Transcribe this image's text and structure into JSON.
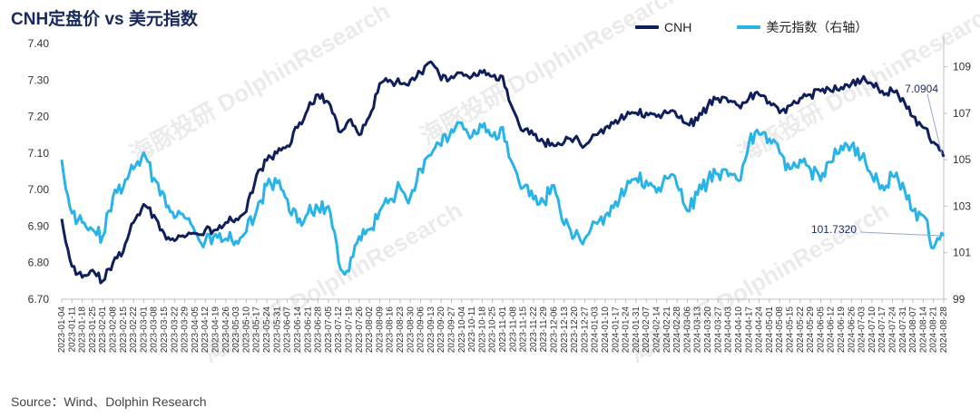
{
  "title": "CNH定盘价 vs 美元指数",
  "source": "Source：Wind、Dolphin Research",
  "watermark": "海豚投研 DolphinResearch",
  "colors": {
    "cnh": "#0f1f5c",
    "usd": "#29b3e6",
    "leader": "#9aa7c4"
  },
  "chart_data": {
    "type": "line",
    "xlabel": "",
    "ylabel": "",
    "x_ticks": [
      "2023-01-04",
      "2023-01-11",
      "2023-01-18",
      "2023-01-25",
      "2023-02-01",
      "2023-02-08",
      "2023-02-15",
      "2023-02-22",
      "2023-03-01",
      "2023-03-08",
      "2023-03-15",
      "2023-03-22",
      "2023-03-29",
      "2023-04-05",
      "2023-04-12",
      "2023-04-19",
      "2023-04-26",
      "2023-05-03",
      "2023-05-10",
      "2023-05-17",
      "2023-05-24",
      "2023-05-31",
      "2023-06-07",
      "2023-06-14",
      "2023-06-21",
      "2023-06-28",
      "2023-07-05",
      "2023-07-12",
      "2023-07-19",
      "2023-07-26",
      "2023-08-02",
      "2023-08-09",
      "2023-08-16",
      "2023-08-23",
      "2023-08-30",
      "2023-09-06",
      "2023-09-13",
      "2023-09-20",
      "2023-09-27",
      "2023-10-04",
      "2023-10-11",
      "2023-10-18",
      "2023-10-25",
      "2023-11-01",
      "2023-11-08",
      "2023-11-15",
      "2023-11-22",
      "2023-11-29",
      "2023-12-06",
      "2023-12-13",
      "2023-12-20",
      "2023-12-27",
      "2024-01-03",
      "2024-01-10",
      "2024-01-17",
      "2024-01-24",
      "2024-01-31",
      "2024-02-07",
      "2024-02-14",
      "2024-02-21",
      "2024-02-28",
      "2024-03-06",
      "2024-03-13",
      "2024-03-20",
      "2024-03-27",
      "2024-04-03",
      "2024-04-10",
      "2024-04-17",
      "2024-04-24",
      "2024-05-01",
      "2024-05-08",
      "2024-05-15",
      "2024-05-22",
      "2024-05-29",
      "2024-06-05",
      "2024-06-12",
      "2024-06-19",
      "2024-06-26",
      "2024-07-03",
      "2024-07-10",
      "2024-07-17",
      "2024-07-24",
      "2024-07-31",
      "2024-08-07",
      "2024-08-14",
      "2024-08-21",
      "2024-08-28"
    ],
    "y_left": {
      "min": 6.7,
      "max": 7.4,
      "ticks": [
        "6.70",
        "6.80",
        "6.90",
        "7.00",
        "7.10",
        "7.20",
        "7.30",
        "7.40"
      ]
    },
    "y_right": {
      "min": 99,
      "max": 110,
      "ticks": [
        "99",
        "101",
        "103",
        "105",
        "107",
        "109"
      ]
    },
    "series": [
      {
        "name": "CNH",
        "axis": "left",
        "values": [
          6.92,
          6.79,
          6.76,
          6.78,
          6.75,
          6.8,
          6.83,
          6.91,
          6.96,
          6.93,
          6.88,
          6.86,
          6.87,
          6.88,
          6.89,
          6.89,
          6.91,
          6.92,
          6.94,
          7.04,
          7.08,
          7.1,
          7.12,
          7.17,
          7.22,
          7.26,
          7.24,
          7.16,
          7.19,
          7.15,
          7.2,
          7.29,
          7.3,
          7.29,
          7.3,
          7.32,
          7.35,
          7.3,
          7.31,
          7.32,
          7.31,
          7.32,
          7.31,
          7.31,
          7.22,
          7.16,
          7.15,
          7.13,
          7.12,
          7.13,
          7.14,
          7.12,
          7.15,
          7.17,
          7.19,
          7.2,
          7.21,
          7.21,
          7.2,
          7.21,
          7.2,
          7.18,
          7.19,
          7.23,
          7.25,
          7.24,
          7.23,
          7.25,
          7.26,
          7.24,
          7.21,
          7.23,
          7.25,
          7.26,
          7.27,
          7.27,
          7.28,
          7.29,
          7.3,
          7.29,
          7.27,
          7.27,
          7.25,
          7.2,
          7.17,
          7.13,
          7.09
        ]
      },
      {
        "name": "美元指数（右轴）",
        "axis": "right",
        "values": [
          105.0,
          102.7,
          102.3,
          102.0,
          101.7,
          103.4,
          103.8,
          104.6,
          105.3,
          104.2,
          103.5,
          102.5,
          102.5,
          101.9,
          101.5,
          101.8,
          101.6,
          101.5,
          101.9,
          102.8,
          103.9,
          104.0,
          103.3,
          102.3,
          102.7,
          102.9,
          103.0,
          100.6,
          100.2,
          101.7,
          102.0,
          102.8,
          103.3,
          103.8,
          103.4,
          104.6,
          105.2,
          105.6,
          106.3,
          106.6,
          106.0,
          106.4,
          106.0,
          106.4,
          104.8,
          103.8,
          103.3,
          103.2,
          103.9,
          102.2,
          101.7,
          101.6,
          102.3,
          102.6,
          103.2,
          103.7,
          104.2,
          104.1,
          103.6,
          104.2,
          103.9,
          102.8,
          103.5,
          104.1,
          104.4,
          104.3,
          104.1,
          105.7,
          106.1,
          105.9,
          105.3,
          104.6,
          105.0,
          104.6,
          104.1,
          104.9,
          105.6,
          105.6,
          105.1,
          104.3,
          103.9,
          104.3,
          104.0,
          102.8,
          102.6,
          101.2,
          101.73
        ]
      }
    ],
    "annotations": [
      {
        "series": "CNH",
        "label": "7.0904"
      },
      {
        "series": "美元指数（右轴）",
        "label": "101.7320"
      }
    ],
    "legend_position": "top-right",
    "grid": false
  }
}
